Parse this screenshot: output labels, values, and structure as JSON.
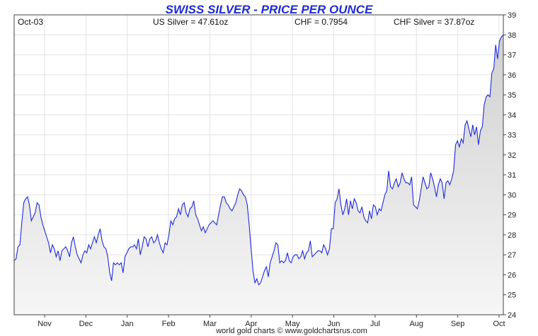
{
  "chart_data": {
    "type": "area",
    "title": "SWISS SILVER - PRICE PER OUNCE",
    "header": {
      "date": "Oct-03",
      "us_silver": "US Silver = 47.61oz",
      "chf": "CHF = 0.7954",
      "chf_silver": "CHF Silver = 37.87oz"
    },
    "footer": "world gold charts © www.goldchartsrus.com",
    "x_labels": [
      "Nov",
      "Dec",
      "Jan",
      "Feb",
      "Mar",
      "Apr",
      "May",
      "Jun",
      "Jul",
      "Aug",
      "Sep",
      "Oct"
    ],
    "ylim": [
      24,
      39
    ],
    "y_ticks": [
      24,
      25,
      26,
      27,
      28,
      29,
      30,
      31,
      32,
      33,
      34,
      35,
      36,
      37,
      38,
      39
    ],
    "grid": true,
    "colors": {
      "line": "#1f2bd6",
      "fill_top": "#d0d0d0",
      "fill_bottom": "#f6f6f6",
      "grid": "#e2e2e2",
      "title": "#1f2bd6"
    },
    "series": [
      {
        "values": [
          26.7,
          26.8,
          27.4,
          27.5,
          28.6,
          29.6,
          29.8,
          29.9,
          29.5,
          28.7,
          28.9,
          29.1,
          29.6,
          29.5,
          28.9,
          28.5,
          28.2,
          27.9,
          27.6,
          27.1,
          27.5,
          27.3,
          26.9,
          27.2,
          26.7,
          27.2,
          27.3,
          27.4,
          27.2,
          26.9,
          27.6,
          27.9,
          27.4,
          27.0,
          26.8,
          26.6,
          27.0,
          27.2,
          27.1,
          27.5,
          27.3,
          27.6,
          27.9,
          27.6,
          28.0,
          28.3,
          27.7,
          27.4,
          27.3,
          26.9,
          26.1,
          25.7,
          26.6,
          26.5,
          26.6,
          26.5,
          26.6,
          26.1,
          26.9,
          27.1,
          27.3,
          27.4,
          27.4,
          27.5,
          27.3,
          27.8,
          27.0,
          27.4,
          27.9,
          27.8,
          27.4,
          27.8,
          27.9,
          27.6,
          27.7,
          28.0,
          27.6,
          27.3,
          27.1,
          27.6,
          27.5,
          28.0,
          28.7,
          28.5,
          28.8,
          28.9,
          29.3,
          29.0,
          29.5,
          29.6,
          29.1,
          28.9,
          29.3,
          29.4,
          29.7,
          29.0,
          28.8,
          28.5,
          28.2,
          28.4,
          28.1,
          28.3,
          28.5,
          28.6,
          28.7,
          28.6,
          28.5,
          29.0,
          29.5,
          29.9,
          29.9,
          29.6,
          29.5,
          29.3,
          29.2,
          29.4,
          29.6,
          30.0,
          30.3,
          30.2,
          30.0,
          29.9,
          29.5,
          28.5,
          27.3,
          26.2,
          25.6,
          25.8,
          25.5,
          25.6,
          25.9,
          26.2,
          26.4,
          25.9,
          26.6,
          26.9,
          27.2,
          27.6,
          27.5,
          26.6,
          26.7,
          26.6,
          26.7,
          27.1,
          26.7,
          26.6,
          26.9,
          27.0,
          27.0,
          26.8,
          26.9,
          27.2,
          26.8,
          27.1,
          27.2,
          27.7,
          26.9,
          27.0,
          27.1,
          27.2,
          27.2,
          27.1,
          27.5,
          27.3,
          27.0,
          27.3,
          28.3,
          28.3,
          29.6,
          29.8,
          30.3,
          29.5,
          29.0,
          29.3,
          29.8,
          29.0,
          29.7,
          29.3,
          29.8,
          29.6,
          29.2,
          29.1,
          29.4,
          28.9,
          28.7,
          28.6,
          29.2,
          28.8,
          29.5,
          29.4,
          29.0,
          29.3,
          29.2,
          29.6,
          30.0,
          30.2,
          31.2,
          30.4,
          30.3,
          30.6,
          30.8,
          30.4,
          30.6,
          31.1,
          30.8,
          30.6,
          30.6,
          30.5,
          30.9,
          29.5,
          29.4,
          29.3,
          29.7,
          30.3,
          30.9,
          30.6,
          30.3,
          30.4,
          31.1,
          30.8,
          30.4,
          29.9,
          30.5,
          30.8,
          30.6,
          29.8,
          30.6,
          30.7,
          30.5,
          30.8,
          31.2,
          32.5,
          32.7,
          32.4,
          32.8,
          32.6,
          33.5,
          33.7,
          33.3,
          32.9,
          33.5,
          33.0,
          33.4,
          32.5,
          33.2,
          33.4,
          34.5,
          34.9,
          35.0,
          34.9,
          36.1,
          36.3,
          37.5,
          36.8,
          37.7,
          37.9,
          38.0
        ]
      }
    ]
  }
}
